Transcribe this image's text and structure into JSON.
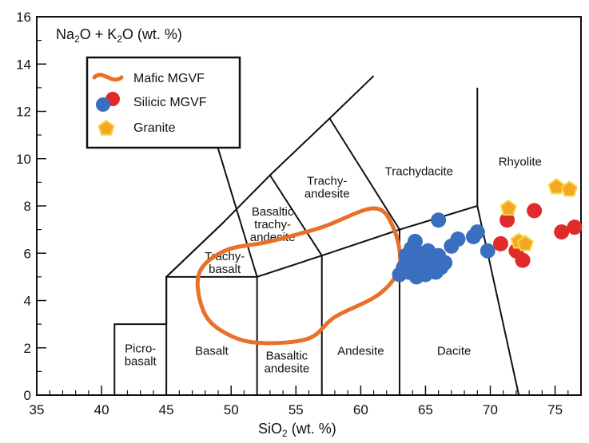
{
  "chart_data": {
    "type": "scatter",
    "title": "",
    "xlabel": "SiO",
    "xlabel_subscript": "2",
    "xlabel_unit": " (wt. %)",
    "ylabel_parts": [
      "Na",
      "2",
      "O + K",
      "2",
      "O (wt. %)"
    ],
    "xlim": [
      35,
      77
    ],
    "ylim": [
      0,
      16
    ],
    "x_ticks": [
      35,
      40,
      45,
      50,
      55,
      60,
      65,
      70,
      75
    ],
    "y_ticks": [
      0,
      2,
      4,
      6,
      8,
      10,
      12,
      14,
      16
    ],
    "grid": false,
    "legend_position": "top-left",
    "legend": [
      {
        "label": "Mafic MGVF",
        "symbol": "line",
        "color": "#e8702a"
      },
      {
        "label": "Silicic MGVF",
        "symbol": "circle",
        "colors": [
          "#e02b2b",
          "#3a6fbf"
        ]
      },
      {
        "label": "Granite",
        "symbol": "pentagon",
        "color": "#f5a623"
      }
    ],
    "tas_field_boundaries": [
      [
        [
          41,
          0
        ],
        [
          41,
          3
        ],
        [
          45,
          3
        ],
        [
          45,
          5
        ],
        [
          49.4,
          7.3
        ],
        [
          53,
          9.3
        ],
        [
          57.6,
          11.7
        ],
        [
          61,
          13.5
        ]
      ],
      [
        [
          45,
          0
        ],
        [
          45,
          5
        ],
        [
          52,
          5
        ],
        [
          57,
          5.9
        ],
        [
          63,
          7
        ],
        [
          69,
          8
        ],
        [
          69,
          13
        ]
      ],
      [
        [
          52,
          0
        ],
        [
          52,
          5
        ],
        [
          57,
          0
        ],
        [
          57,
          5.9
        ]
      ],
      [
        [
          63,
          0
        ],
        [
          63,
          7
        ]
      ],
      [
        [
          45,
          5
        ],
        [
          49.4,
          7.3
        ]
      ],
      [
        [
          52,
          5
        ],
        [
          48.4,
          11.5
        ]
      ],
      [
        [
          57,
          5.9
        ],
        [
          53,
          9.3
        ]
      ],
      [
        [
          63,
          7
        ],
        [
          57.6,
          11.7
        ]
      ],
      [
        [
          69,
          8
        ],
        [
          72.2,
          0
        ]
      ]
    ],
    "field_labels": [
      {
        "lines": [
          "Picro-",
          "basalt"
        ],
        "x": 43,
        "y": 1.8
      },
      {
        "lines": [
          "Basalt"
        ],
        "x": 48.5,
        "y": 1.7
      },
      {
        "lines": [
          "Basaltic",
          "andesite"
        ],
        "x": 54.3,
        "y": 1.5
      },
      {
        "lines": [
          "Andesite"
        ],
        "x": 60,
        "y": 1.7
      },
      {
        "lines": [
          "Dacite"
        ],
        "x": 67.2,
        "y": 1.7
      },
      {
        "lines": [
          "Trachy-",
          "basalt"
        ],
        "x": 49.5,
        "y": 5.7
      },
      {
        "lines": [
          "Basaltic",
          "trachy-",
          "andesite"
        ],
        "x": 53.2,
        "y": 7.6
      },
      {
        "lines": [
          "Trachy-",
          "andesite"
        ],
        "x": 57.4,
        "y": 8.9
      },
      {
        "lines": [
          "Trachydacite"
        ],
        "x": 64.5,
        "y": 9.3
      },
      {
        "lines": [
          "Rhyolite"
        ],
        "x": 72.3,
        "y": 9.7
      }
    ],
    "series": [
      {
        "name": "Mafic MGVF",
        "kind": "outline",
        "color": "#e8702a",
        "points": [
          [
            52.5,
            2.2
          ],
          [
            56,
            2.4
          ],
          [
            58,
            3.3
          ],
          [
            61.5,
            4.3
          ],
          [
            63,
            5.5
          ],
          [
            62.5,
            7.1
          ],
          [
            61,
            7.9
          ],
          [
            57,
            7.1
          ],
          [
            53,
            6.5
          ],
          [
            49.5,
            6.1
          ],
          [
            47.5,
            5.1
          ],
          [
            48,
            3.4
          ],
          [
            50,
            2.5
          ]
        ]
      },
      {
        "name": "Silicic MGVF (blue)",
        "color": "#3a6fbf",
        "points": [
          [
            63,
            5.1
          ],
          [
            63.3,
            5.4
          ],
          [
            63.5,
            5.9
          ],
          [
            63.7,
            5.2
          ],
          [
            63.9,
            6.2
          ],
          [
            64.1,
            5.6
          ],
          [
            64.3,
            5.0
          ],
          [
            64.5,
            6.0
          ],
          [
            64.6,
            5.3
          ],
          [
            64.8,
            5.7
          ],
          [
            65,
            5.1
          ],
          [
            65.2,
            6.1
          ],
          [
            65.4,
            5.5
          ],
          [
            65.6,
            5.8
          ],
          [
            65.8,
            5.2
          ],
          [
            66,
            5.9
          ],
          [
            66.2,
            5.4
          ],
          [
            66.5,
            5.6
          ],
          [
            64.2,
            6.5
          ],
          [
            66.0,
            7.4
          ],
          [
            67.0,
            6.3
          ],
          [
            67.5,
            6.6
          ],
          [
            68.7,
            6.7
          ],
          [
            69.0,
            6.9
          ],
          [
            69.8,
            6.1
          ]
        ]
      },
      {
        "name": "Silicic MGVF (red)",
        "color": "#e02b2b",
        "points": [
          [
            70.8,
            6.4
          ],
          [
            71.3,
            7.4
          ],
          [
            72.0,
            6.1
          ],
          [
            72.5,
            5.7
          ],
          [
            73.4,
            7.8
          ],
          [
            75.5,
            6.9
          ],
          [
            76.5,
            7.1
          ]
        ]
      },
      {
        "name": "Granite",
        "color": "#f5a623",
        "points": [
          [
            71.4,
            7.9
          ],
          [
            72.2,
            6.5
          ],
          [
            72.7,
            6.4
          ],
          [
            75.1,
            8.8
          ],
          [
            76.1,
            8.7
          ]
        ]
      }
    ]
  }
}
